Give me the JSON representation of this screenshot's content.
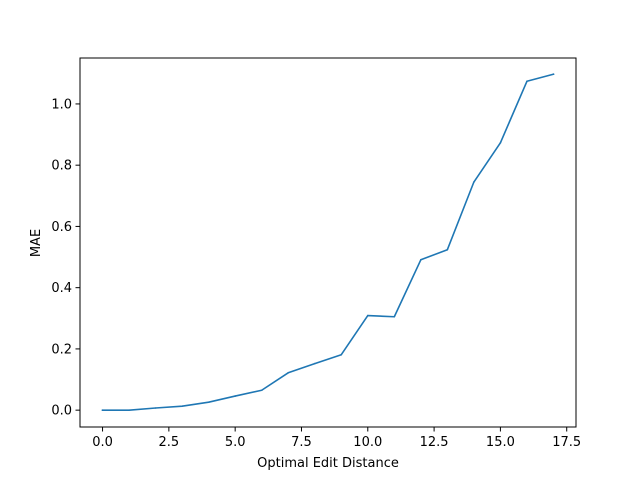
{
  "chart_data": {
    "type": "line",
    "title": "",
    "xlabel": "Optimal Edit Distance",
    "ylabel": "MAE",
    "xlim": [
      -0.85,
      17.85
    ],
    "ylim": [
      -0.055,
      1.15
    ],
    "xticks": [
      0.0,
      2.5,
      5.0,
      7.5,
      10.0,
      12.5,
      15.0,
      17.5
    ],
    "xtick_labels": [
      "0.0",
      "2.5",
      "5.0",
      "7.5",
      "10.0",
      "12.5",
      "15.0",
      "17.5"
    ],
    "yticks": [
      0.0,
      0.2,
      0.4,
      0.6,
      0.8,
      1.0
    ],
    "ytick_labels": [
      "0.0",
      "0.2",
      "0.4",
      "0.6",
      "0.8",
      "1.0"
    ],
    "grid": false,
    "series": [
      {
        "color": "#1f77b4",
        "x": [
          0,
          1,
          2,
          3,
          4,
          5,
          6,
          7,
          8,
          9,
          10,
          11,
          12,
          13,
          14,
          15,
          16,
          17
        ],
        "y": [
          0.0,
          0.0,
          0.007,
          0.013,
          0.026,
          0.046,
          0.065,
          0.122,
          0.152,
          0.181,
          0.309,
          0.305,
          0.491,
          0.524,
          0.745,
          0.873,
          1.074,
          1.097
        ]
      }
    ]
  }
}
